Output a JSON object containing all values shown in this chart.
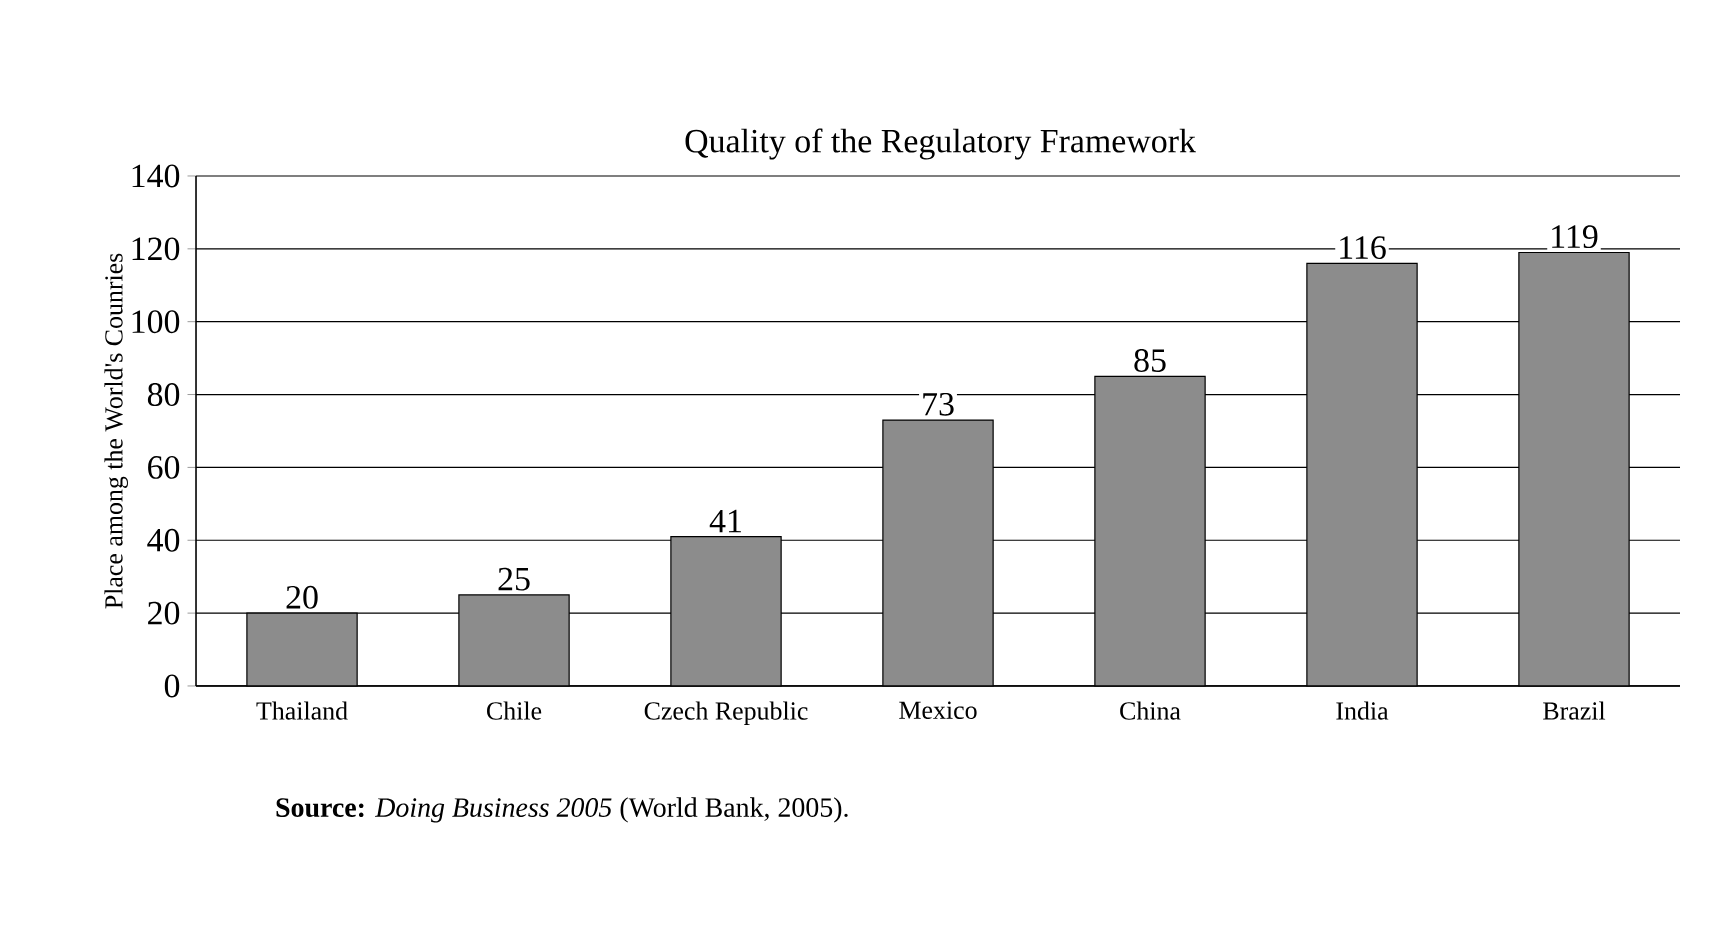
{
  "chart_data": {
    "type": "bar",
    "title": "Quality of the Regulatory Framework",
    "ylabel": "Place among the World's Counries",
    "categories": [
      "Thailand",
      "Chile",
      "Czech Republic",
      "Mexico",
      "China",
      "India",
      "Brazil"
    ],
    "values": [
      20,
      25,
      41,
      73,
      85,
      116,
      119
    ],
    "color": "#8c8c8c",
    "ylim": [
      0,
      140
    ],
    "yticks": [
      0,
      20,
      40,
      60,
      80,
      100,
      120,
      140
    ],
    "grid": "y",
    "data_labels": true,
    "annotations": [
      "**Source:** *Doing Business 2005* (World Bank, 2005)."
    ]
  }
}
